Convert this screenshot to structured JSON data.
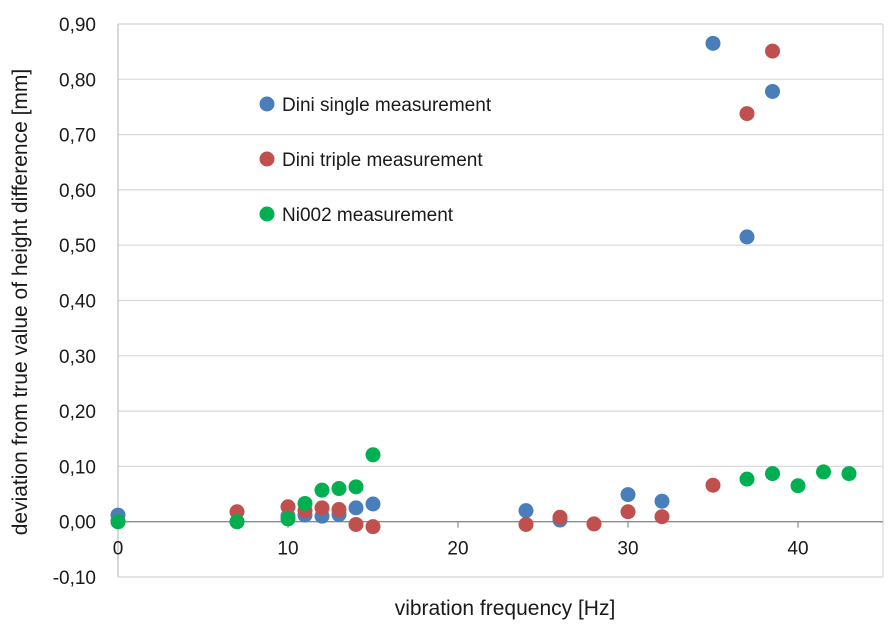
{
  "chart_data": {
    "type": "scatter",
    "title": "",
    "xlabel": "vibration frequency [Hz]",
    "ylabel": "deviation from true value of height difference [mm]",
    "xlim": [
      0,
      45
    ],
    "ylim": [
      -0.1,
      0.9
    ],
    "x_ticks": [
      "0",
      "10",
      "20",
      "30",
      "40"
    ],
    "x_tick_values": [
      0,
      10,
      20,
      30,
      40
    ],
    "y_ticks": [
      "-0,10",
      "0,00",
      "0,10",
      "0,20",
      "0,30",
      "0,40",
      "0,50",
      "0,60",
      "0,70",
      "0,80",
      "0,90"
    ],
    "y_tick_values": [
      -0.1,
      0.0,
      0.1,
      0.2,
      0.3,
      0.4,
      0.5,
      0.6,
      0.7,
      0.8,
      0.9
    ],
    "grid": "horizontal",
    "legend_placement": "upper-left-inside",
    "series": [
      {
        "name": "Dini single measurement",
        "color": "#4a7ebb",
        "points": [
          [
            0,
            0.012
          ],
          [
            7,
            0.0
          ],
          [
            10,
            0.01
          ],
          [
            11,
            0.012
          ],
          [
            12,
            0.01
          ],
          [
            13,
            0.013
          ],
          [
            14,
            0.025
          ],
          [
            15,
            0.032
          ],
          [
            24,
            0.02
          ],
          [
            26,
            0.003
          ],
          [
            30,
            0.049
          ],
          [
            32,
            0.037
          ],
          [
            35,
            0.865
          ],
          [
            37,
            0.515
          ],
          [
            38.5,
            0.778
          ]
        ]
      },
      {
        "name": "Dini triple measurement",
        "color": "#c0504d",
        "points": [
          [
            0,
            0.0
          ],
          [
            7,
            0.018
          ],
          [
            10,
            0.027
          ],
          [
            11,
            0.02
          ],
          [
            12,
            0.025
          ],
          [
            13,
            0.022
          ],
          [
            14,
            -0.005
          ],
          [
            15,
            -0.009
          ],
          [
            24,
            -0.005
          ],
          [
            26,
            0.008
          ],
          [
            28,
            -0.004
          ],
          [
            30,
            0.018
          ],
          [
            32,
            0.009
          ],
          [
            35,
            0.066
          ],
          [
            37,
            0.738
          ],
          [
            38.5,
            0.851
          ]
        ]
      },
      {
        "name": "Ni002 measurement",
        "color": "#00b050",
        "points": [
          [
            0,
            0.0
          ],
          [
            7,
            0.0
          ],
          [
            10,
            0.005
          ],
          [
            11,
            0.033
          ],
          [
            12,
            0.057
          ],
          [
            13,
            0.06
          ],
          [
            14,
            0.063
          ],
          [
            15,
            0.121
          ],
          [
            37,
            0.077
          ],
          [
            38.5,
            0.087
          ],
          [
            40,
            0.065
          ],
          [
            41.5,
            0.09
          ],
          [
            43,
            0.087
          ]
        ]
      }
    ]
  }
}
